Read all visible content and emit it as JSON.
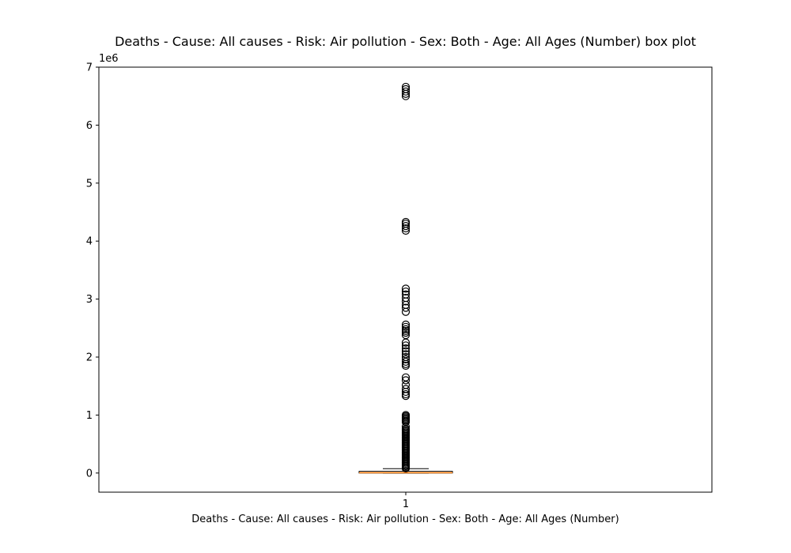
{
  "chart_data": {
    "type": "box",
    "title": "Deaths - Cause: All causes - Risk: Air pollution - Sex: Both - Age: All Ages (Number) box plot",
    "xlabel": "Deaths - Cause: All causes - Risk: Air pollution - Sex: Both - Age: All Ages (Number)",
    "ylabel": "",
    "y_offset_label": "1e6",
    "categories": [
      "1"
    ],
    "ylim": [
      -330000,
      7000000
    ],
    "yticks": [
      0,
      1000000,
      2000000,
      3000000,
      4000000,
      5000000,
      6000000,
      7000000
    ],
    "ytick_labels": [
      "0",
      "1",
      "2",
      "3",
      "4",
      "5",
      "6",
      "7"
    ],
    "grid": false,
    "box": {
      "whisker_low": 0,
      "q1": 500,
      "median": 6000,
      "q3": 30000,
      "whisker_high": 75000
    },
    "outliers": [
      80000,
      100000,
      120000,
      140000,
      160000,
      180000,
      200000,
      220000,
      240000,
      260000,
      280000,
      300000,
      320000,
      340000,
      360000,
      380000,
      400000,
      420000,
      440000,
      460000,
      480000,
      500000,
      520000,
      540000,
      560000,
      580000,
      600000,
      620000,
      640000,
      660000,
      680000,
      700000,
      720000,
      740000,
      760000,
      800000,
      880000,
      900000,
      920000,
      940000,
      960000,
      980000,
      1000000,
      1330000,
      1360000,
      1400000,
      1450000,
      1520000,
      1600000,
      1650000,
      1850000,
      1880000,
      1920000,
      1960000,
      2000000,
      2050000,
      2100000,
      2150000,
      2200000,
      2250000,
      2380000,
      2420000,
      2450000,
      2480000,
      2520000,
      2560000,
      2780000,
      2850000,
      2900000,
      2960000,
      3020000,
      3080000,
      3130000,
      3180000,
      4180000,
      4220000,
      4260000,
      4300000,
      4330000,
      6500000,
      6540000,
      6580000,
      6620000,
      6660000
    ],
    "colors": {
      "median": "#ff7f0e",
      "box": "#000000",
      "outlier": "#000000"
    }
  }
}
